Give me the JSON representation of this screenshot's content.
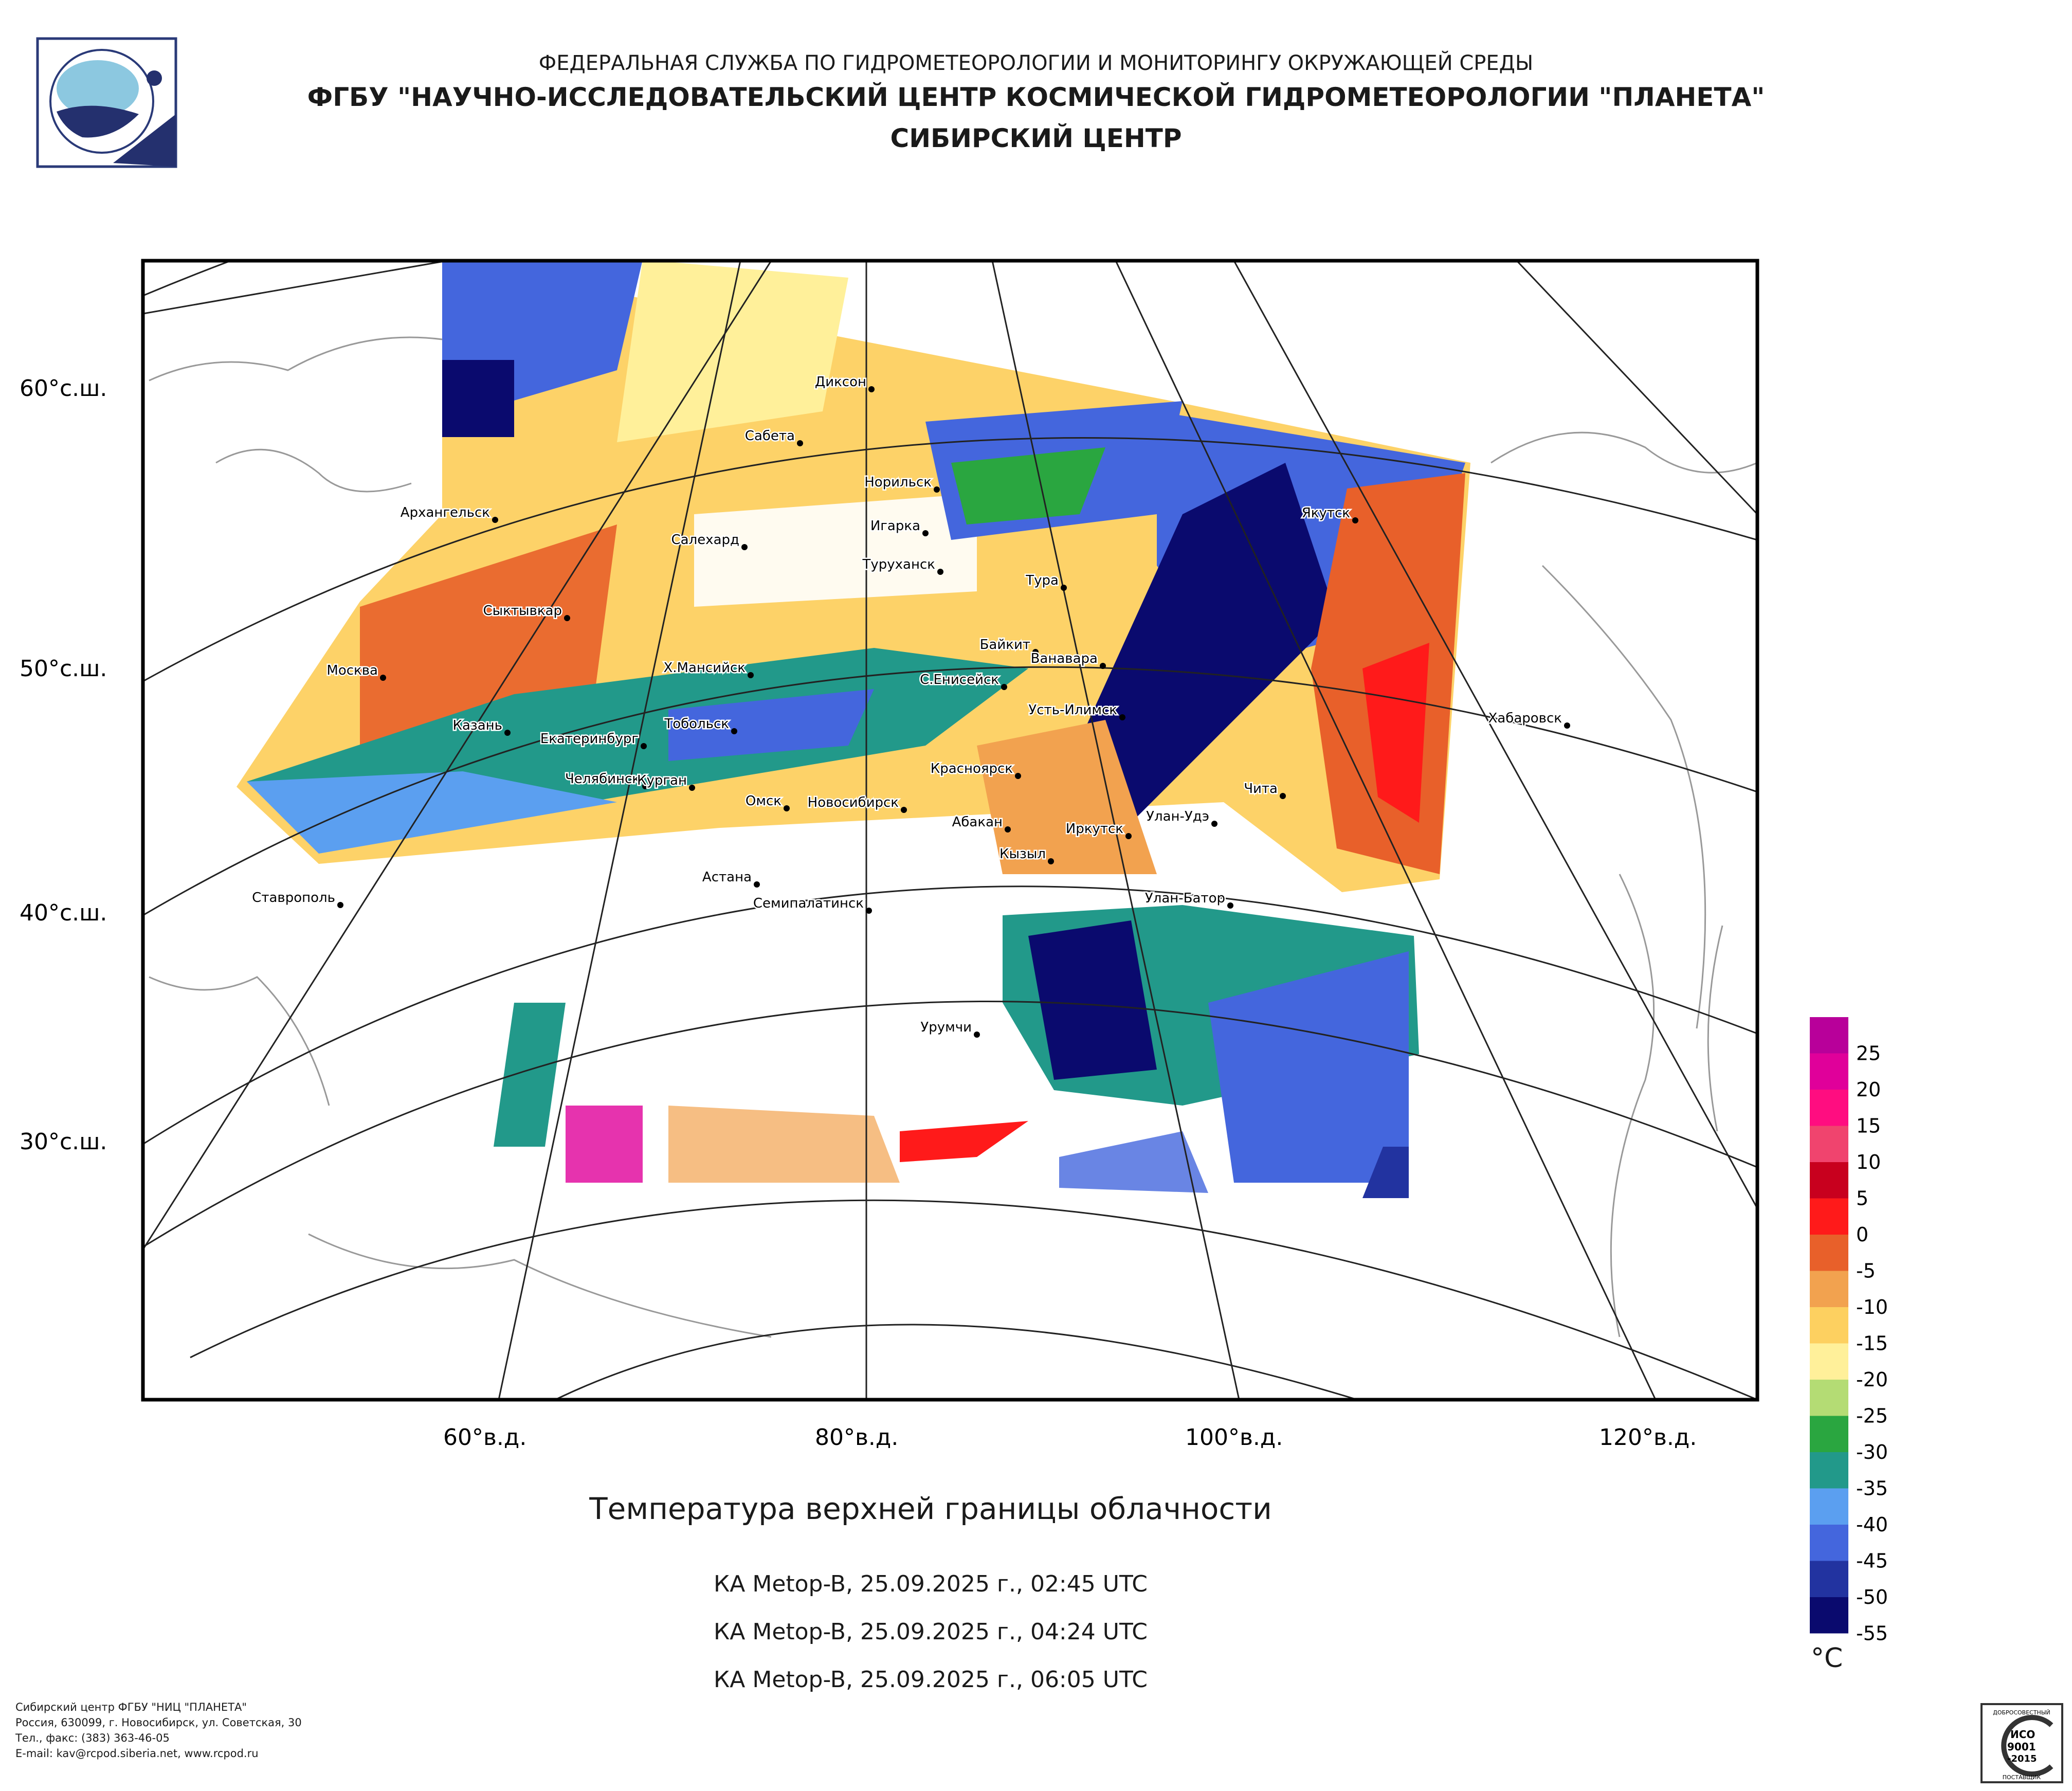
{
  "header": {
    "line1": "ФЕДЕРАЛЬНАЯ СЛУЖБА ПО ГИДРОМЕТЕОРОЛОГИИ И МОНИТОРИНГУ ОКРУЖАЮЩЕЙ СРЕДЫ",
    "line2": "ФГБУ \"НАУЧНО-ИССЛЕДОВАТЕЛЬСКИЙ ЦЕНТР КОСМИЧЕСКОЙ ГИДРОМЕТЕОРОЛОГИИ \"ПЛАНЕТА\"",
    "line3": "СИБИРСКИЙ ЦЕНТР"
  },
  "logo": {
    "icon": "planeta-logo"
  },
  "map": {
    "lat_labels": [
      "60°с.ш.",
      "50°с.ш.",
      "40°с.ш.",
      "30°с.ш."
    ],
    "lon_labels": [
      "60°в.д.",
      "80°в.д.",
      "100°в.д.",
      "120°в.д."
    ],
    "cities": [
      "Диксон",
      "Сабета",
      "Норильск",
      "Игарка",
      "Салехард",
      "Архангельск",
      "Туруханск",
      "Тура",
      "Якутск",
      "Сыктывкар",
      "Байкит",
      "Ванавара",
      "Москва",
      "Х.Мансийск",
      "С.Енисейск",
      "Усть-Илимск",
      "Казань",
      "Тобольск",
      "Хабаровск",
      "Екатеринбург",
      "Челябинск",
      "Курган",
      "Красноярск",
      "Чита",
      "Омск",
      "Новосибирск",
      "Абакан",
      "Улан-Удэ",
      "Иркутск",
      "Кызыл",
      "Астана",
      "Ставрополь",
      "Семипалатинск",
      "Улан-Батор",
      "Урумчи"
    ]
  },
  "title": "Температура верхней границы облачности",
  "passes": [
    "КА Metop-B, 25.09.2025 г., 02:45 UTC",
    "КА Metop-B, 25.09.2025 г., 04:24 UTC",
    "КА Metop-B, 25.09.2025 г., 06:05 UTC"
  ],
  "legend": {
    "unit": "°C",
    "labels": [
      "25",
      "20",
      "15",
      "10",
      "5",
      "0",
      "-5",
      "-10",
      "-15",
      "-20",
      "-25",
      "-30",
      "-35",
      "-40",
      "-45",
      "-50",
      "-55"
    ],
    "colors": [
      "#b8009a",
      "#e0009a",
      "#ff0d80",
      "#f0446e",
      "#c8001e",
      "#ff1a1a",
      "#e8602a",
      "#f2a24f",
      "#fdd060",
      "#fff09a",
      "#b4dc74",
      "#2aa640",
      "#22998a",
      "#5b9ff0",
      "#4466dd",
      "#2233a0",
      "#0a0a6e"
    ]
  },
  "footer": {
    "line1": "Сибирский центр ФГБУ \"НИЦ \"ПЛАНЕТА\"",
    "line2": "Россия, 630099, г. Новосибирск, ул. Советская, 30",
    "line3": "Тел., факс: (383) 363-46-05",
    "line4": "E-mail: kav@rcpod.siberia.net, www.rcpod.ru"
  },
  "certificate": {
    "top_text": "ДОБРОСОВЕСТНЫЙ",
    "iso": "ИСО",
    "num": "9001",
    "year": "-2015",
    "bottom_text": "ПОСТАВЩИК"
  }
}
